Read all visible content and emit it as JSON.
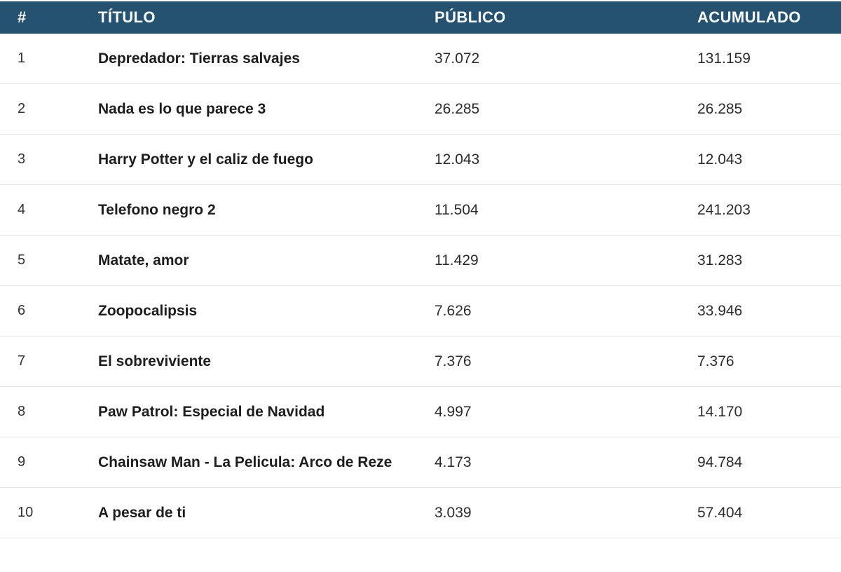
{
  "table": {
    "columns": [
      {
        "key": "rank",
        "label": "#"
      },
      {
        "key": "title",
        "label": "TÍTULO"
      },
      {
        "key": "publico",
        "label": "PÚBLICO"
      },
      {
        "key": "acumulado",
        "label": "ACUMULADO"
      }
    ],
    "rows": [
      {
        "rank": "1",
        "title": "Depredador: Tierras salvajes",
        "publico": "37.072",
        "acumulado": "131.159"
      },
      {
        "rank": "2",
        "title": "Nada es lo que parece 3",
        "publico": "26.285",
        "acumulado": "26.285"
      },
      {
        "rank": "3",
        "title": "Harry Potter y el caliz de fuego",
        "publico": "12.043",
        "acumulado": "12.043"
      },
      {
        "rank": "4",
        "title": "Telefono negro 2",
        "publico": "11.504",
        "acumulado": "241.203"
      },
      {
        "rank": "5",
        "title": "Matate, amor",
        "publico": "11.429",
        "acumulado": "31.283"
      },
      {
        "rank": "6",
        "title": "Zoopocalipsis",
        "publico": "7.626",
        "acumulado": "33.946"
      },
      {
        "rank": "7",
        "title": "El sobreviviente",
        "publico": "7.376",
        "acumulado": "7.376"
      },
      {
        "rank": "8",
        "title": "Paw Patrol: Especial de Navidad",
        "publico": "4.997",
        "acumulado": "14.170"
      },
      {
        "rank": "9",
        "title": "Chainsaw Man - La Pelicula: Arco de Reze",
        "publico": "4.173",
        "acumulado": "94.784"
      },
      {
        "rank": "10",
        "title": "A pesar de ti",
        "publico": "3.039",
        "acumulado": "57.404"
      }
    ]
  },
  "colors": {
    "header_bg": "#255271",
    "header_text": "#fafbfc",
    "row_border": "#e4e4e4",
    "title_text": "#1d1d1d",
    "number_text": "#2b2b2b"
  }
}
